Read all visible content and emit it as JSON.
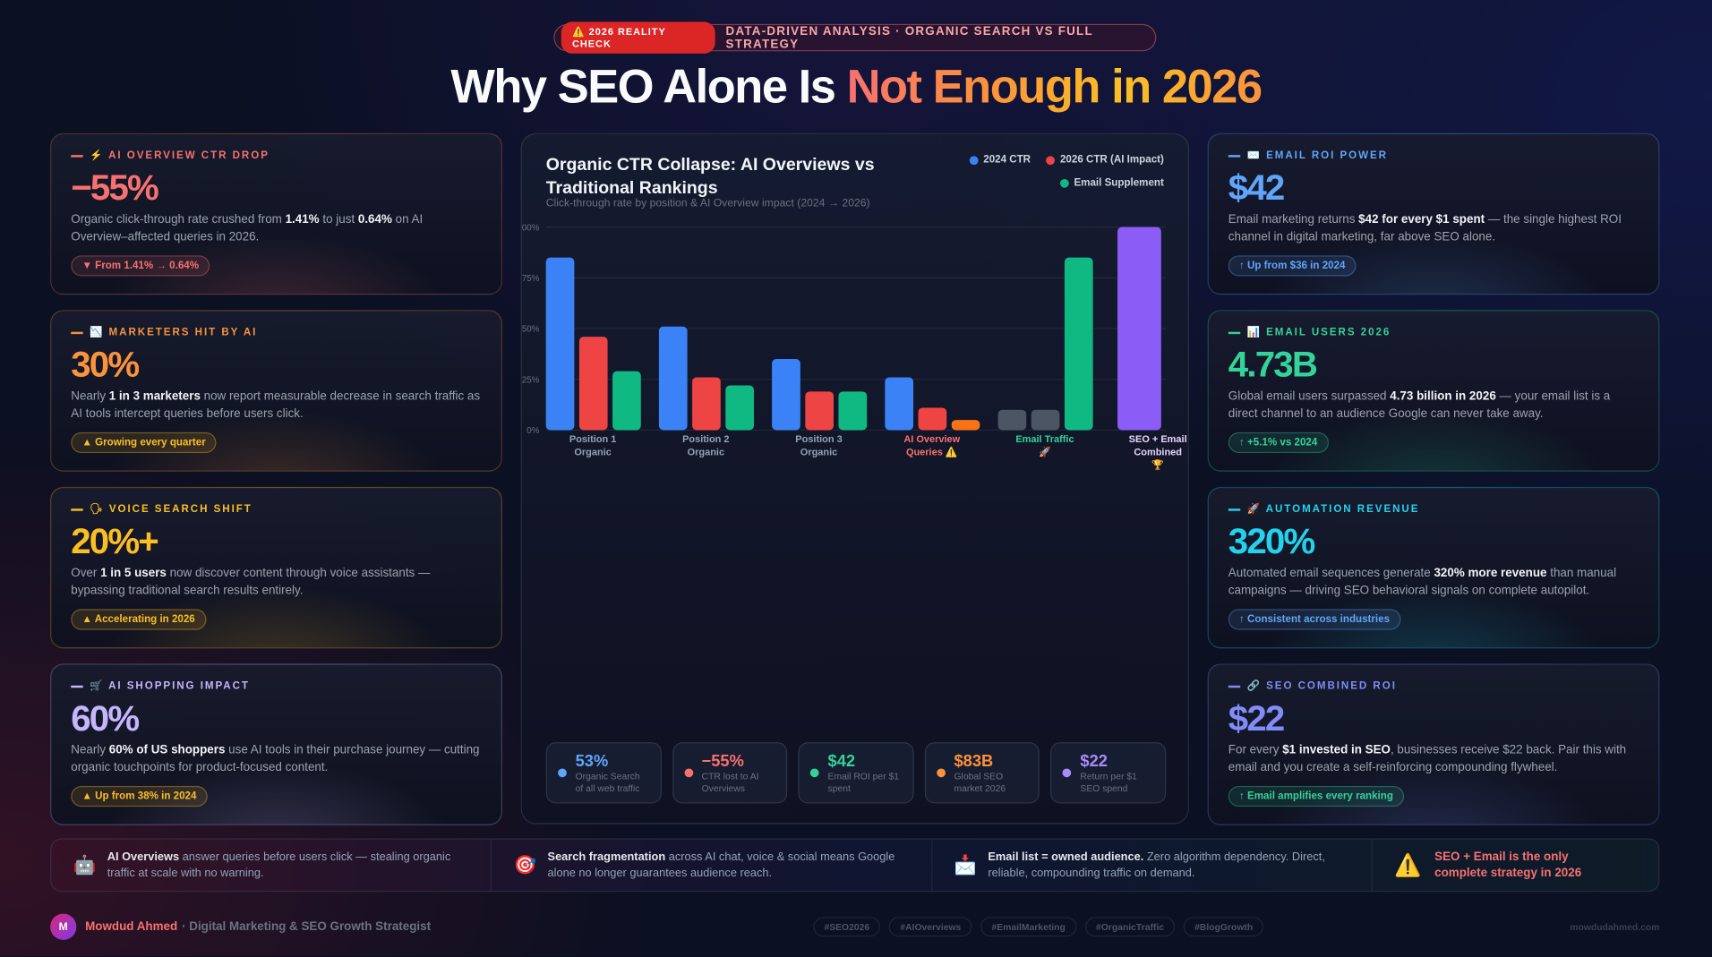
{
  "header": {
    "badge": "⚠️ 2026 REALITY CHECK",
    "kicker": "DATA-DRIVEN ANALYSIS · ORGANIC SEARCH VS FULL STRATEGY",
    "title": "Why SEO Alone Is",
    "title_accent": "Not Enough in 2026"
  },
  "left_cards": [
    {
      "label": "⚡ AI OVERVIEW CTR DROP",
      "value": "−55%",
      "text": [
        "Organic click-through rate crushed from ",
        "1.41%",
        " to just ",
        "0.64%",
        " on AI Overview–affected queries in 2026."
      ],
      "tag": "▼ From 1.41% → 0.64%",
      "color": "#f87171",
      "tag_color": "#f87171"
    },
    {
      "label": "📉 MARKETERS HIT BY AI",
      "value": "30%",
      "text": [
        "Nearly ",
        "1 in 3 marketers",
        " now report measurable decrease in search traffic as AI tools intercept queries before users click."
      ],
      "tag": "▲ Growing every quarter",
      "color": "#fb923c",
      "tag_color": "#fbbf24"
    },
    {
      "label": "🗣 VOICE SEARCH SHIFT",
      "value": "20%+",
      "text": [
        "Over ",
        "1 in 5 users",
        " now discover content through voice assistants — bypassing traditional search results entirely."
      ],
      "tag": "▲ Accelerating in 2026",
      "color": "#fbbf24",
      "tag_color": "#fbbf24"
    },
    {
      "label": "🛒 AI SHOPPING IMPACT",
      "value": "60%",
      "text": [
        "Nearly ",
        "60% of US shoppers",
        " use AI tools in their purchase journey — cutting organic touchpoints for product-focused content."
      ],
      "tag": "▲ Up from 38% in 2024",
      "color": "#c4b5fd",
      "tag_color": "#fbbf24"
    }
  ],
  "right_cards": [
    {
      "label": "✉️ EMAIL ROI POWER",
      "value": "$42",
      "text": [
        "Email marketing returns ",
        "$42 for every $1 spent",
        " — the single highest ROI channel in digital marketing, far above SEO alone."
      ],
      "tag": "↑ Up from $36 in 2024",
      "color": "#60a5fa",
      "tag_color": "#60a5fa"
    },
    {
      "label": "📊 EMAIL USERS 2026",
      "value": "4.73B",
      "text": [
        "Global email users surpassed ",
        "4.73 billion in 2026",
        " — your email list is a direct channel to an audience Google can never take away."
      ],
      "tag": "↑ +5.1% vs 2024",
      "color": "#34d399",
      "tag_color": "#34d399"
    },
    {
      "label": "🚀 AUTOMATION REVENUE",
      "value": "320%",
      "text": [
        "Automated email sequences generate ",
        "320% more revenue",
        " than manual campaigns — driving SEO behavioral signals on complete autopilot."
      ],
      "tag": "↑ Consistent across industries",
      "color": "#22d3ee",
      "tag_color": "#60a5fa"
    },
    {
      "label": "🔗 SEO COMBINED ROI",
      "value": "$22",
      "text": [
        "For every ",
        "$1 invested in SEO",
        ", businesses receive $22 back. Pair this with email and you create a self-reinforcing compounding flywheel."
      ],
      "tag": "↑ Email amplifies every ranking",
      "color": "#818cf8",
      "tag_color": "#34d399"
    }
  ],
  "chart_data": {
    "type": "bar",
    "title": "Organic CTR Collapse: AI Overviews vs Traditional Rankings",
    "subtitle": "Click-through rate by position & AI Overview impact (2024 → 2026)",
    "categories": [
      "Position 1 Organic",
      "Position 2 Organic",
      "Position 3 Organic",
      "AI Overview Queries ⚠️",
      "Email Traffic 🚀",
      "SEO + Email Combined 🏆"
    ],
    "category_colors": [
      "#94a3b8",
      "#94a3b8",
      "#94a3b8",
      "#f87171",
      "#34d399",
      "#e9d5ff"
    ],
    "series": [
      {
        "name": "2024 CTR",
        "color": "#3b82f6",
        "values": [
          85,
          51,
          35,
          26,
          10,
          null
        ],
        "colors": [
          "#3b82f6",
          "#3b82f6",
          "#3b82f6",
          "#3b82f6",
          "#4b5563",
          "#3b82f6"
        ]
      },
      {
        "name": "2026 CTR (AI Impact)",
        "color": "#ef4444",
        "values": [
          46,
          26,
          19,
          11,
          10,
          null
        ],
        "colors": [
          "#ef4444",
          "#ef4444",
          "#ef4444",
          "#ef4444",
          "#4b5563",
          "#ef4444"
        ]
      },
      {
        "name": "Email Supplement",
        "color": "#10b981",
        "values": [
          29,
          22,
          19,
          5,
          85,
          100
        ],
        "colors": [
          "#10b981",
          "#10b981",
          "#10b981",
          "#f97316",
          "#10b981",
          "#8b5cf6"
        ]
      }
    ],
    "ylim": [
      0,
      100
    ],
    "yticks": [
      {
        "value": 0,
        "label": "0%"
      },
      {
        "value": 25,
        "label": "25%"
      },
      {
        "value": 50,
        "label": "50%"
      },
      {
        "value": 75,
        "label": "75%"
      },
      {
        "value": 100,
        "label": "100%"
      }
    ],
    "grid": true,
    "stats": [
      {
        "value": "53%",
        "label": "Organic Search of all web traffic",
        "color": "#60a5fa"
      },
      {
        "value": "−55%",
        "label": "CTR lost to AI Overviews",
        "color": "#f87171"
      },
      {
        "value": "$42",
        "label": "Email ROI per $1 spent",
        "color": "#34d399"
      },
      {
        "value": "$83B",
        "label": "Global SEO market 2026",
        "color": "#fb923c"
      },
      {
        "value": "$22",
        "label": "Return per $1 SEO spend",
        "color": "#a78bfa"
      }
    ]
  },
  "insights": [
    {
      "icon": "🤖",
      "lead": "AI Overviews",
      "text": " answer queries before users click — stealing organic traffic at scale with no warning."
    },
    {
      "icon": "🎯",
      "lead": "Search fragmentation",
      "text": " across AI chat, voice & social means Google alone no longer guarantees audience reach."
    },
    {
      "icon": "📩",
      "lead": "Email list = owned audience.",
      "text": " Zero algorithm dependency. Direct, reliable, compounding traffic on demand."
    }
  ],
  "callout": {
    "icon": "⚠️",
    "text": "SEO + Email is the only complete strategy in 2026"
  },
  "footer": {
    "initial": "M",
    "name": "Mowdud Ahmed",
    "role": "· Digital Marketing & SEO Growth Strategist",
    "tags": [
      "#SEO2026",
      "#AIOverviews",
      "#EmailMarketing",
      "#OrganicTraffic",
      "#BlogGrowth"
    ],
    "site": "mowdudahmed.com"
  }
}
